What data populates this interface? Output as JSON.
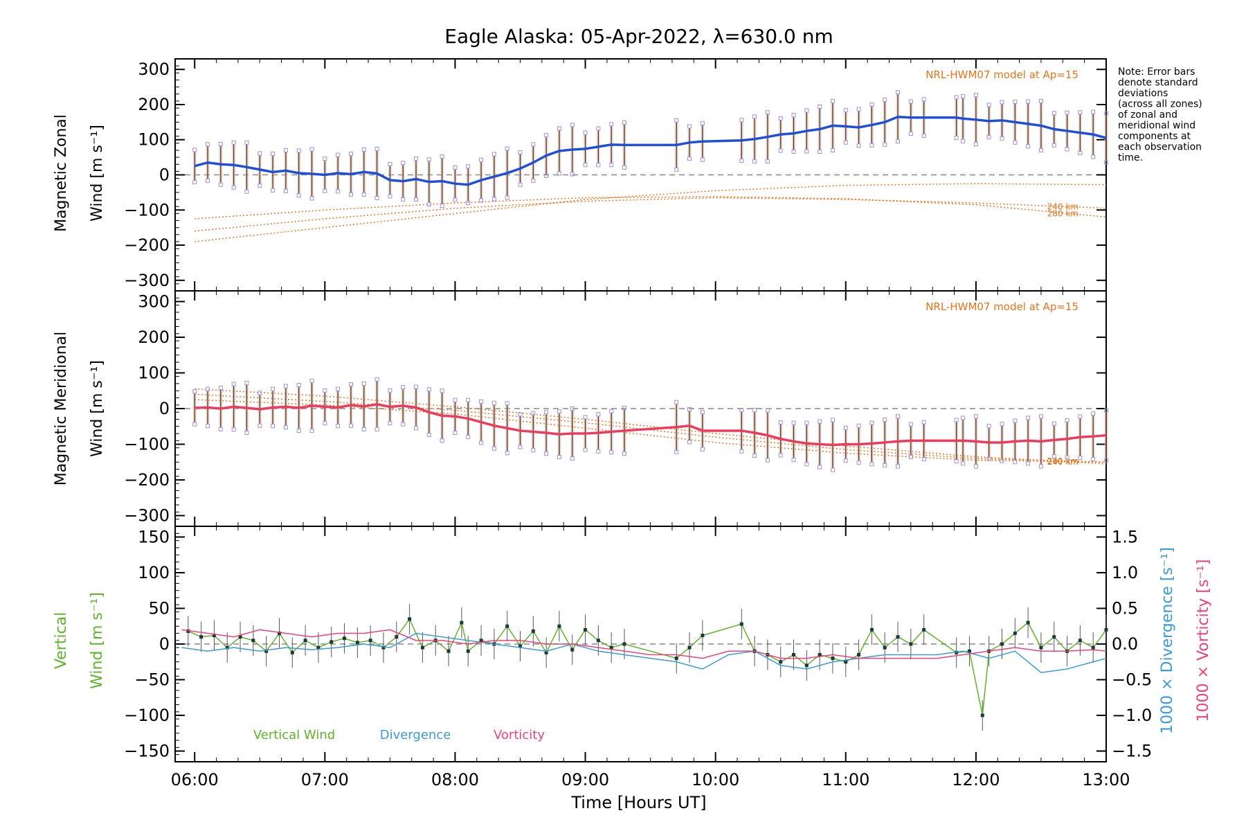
{
  "chart_data": [
    {
      "type": "line",
      "title": "Eagle Alaska: 05-Apr-2022, λ=630.0 nm",
      "ylabel_line1": "Magnetic Zonal",
      "ylabel_line2": "Wind [m s⁻¹]",
      "ylim": [
        -330,
        330
      ],
      "yticks": [
        300,
        200,
        100,
        0,
        -100,
        -200,
        -300
      ],
      "model_label": "NRL-HWM07 model at Ap=15",
      "model_height_labels": [
        "280 km",
        "240 km"
      ],
      "note": [
        "Note: Error bars",
        "denote standard",
        "deviations",
        "(across all zones)",
        "of zonal and",
        "meridional wind",
        "components at",
        "each observation",
        "time."
      ],
      "series": [
        {
          "name": "",
          "color": "#1f4fd8",
          "x": [
            6.0,
            6.1,
            6.2,
            6.3,
            6.4,
            6.5,
            6.6,
            6.7,
            6.8,
            6.9,
            7.0,
            7.1,
            7.2,
            7.3,
            7.4,
            7.5,
            7.6,
            7.7,
            7.8,
            7.9,
            8.0,
            8.1,
            8.2,
            8.3,
            8.4,
            8.5,
            8.6,
            8.7,
            8.8,
            8.9,
            9.0,
            9.1,
            9.2,
            9.3,
            9.7,
            9.8,
            9.9,
            10.2,
            10.3,
            10.4,
            10.5,
            10.6,
            10.7,
            10.8,
            10.9,
            11.0,
            11.1,
            11.2,
            11.3,
            11.4,
            11.5,
            11.6,
            11.85,
            11.9,
            12.0,
            12.1,
            12.2,
            12.3,
            12.4,
            12.5,
            12.6,
            12.7,
            12.8,
            12.9,
            13.0
          ],
          "y": [
            25,
            35,
            30,
            28,
            22,
            15,
            8,
            12,
            5,
            3,
            0,
            5,
            2,
            8,
            4,
            -15,
            -18,
            -12,
            -20,
            -18,
            -25,
            -28,
            -15,
            -5,
            5,
            18,
            35,
            55,
            68,
            72,
            74,
            80,
            86,
            85,
            85,
            92,
            95,
            98,
            102,
            108,
            115,
            118,
            125,
            130,
            140,
            138,
            135,
            142,
            150,
            165,
            163,
            163,
            163,
            160,
            157,
            153,
            155,
            150,
            145,
            140,
            130,
            125,
            120,
            115,
            105
          ]
        }
      ],
      "model_curves": [
        {
          "name": "280 km",
          "x": [
            6.0,
            7.0,
            8.0,
            9.0,
            10.0,
            11.0,
            12.0,
            13.0
          ],
          "y": [
            -125,
            -100,
            -80,
            -65,
            -62,
            -68,
            -85,
            -120
          ]
        },
        {
          "name": "240 km",
          "x": [
            6.0,
            7.0,
            8.0,
            9.0,
            10.0,
            11.0,
            12.0,
            13.0
          ],
          "y": [
            -160,
            -125,
            -95,
            -75,
            -65,
            -70,
            -80,
            -95
          ]
        },
        {
          "name": "",
          "x": [
            6.0,
            7.0,
            8.0,
            9.0,
            10.0,
            11.0,
            12.0,
            13.0
          ],
          "y": [
            -190,
            -150,
            -110,
            -70,
            -45,
            -30,
            -25,
            -28
          ]
        }
      ]
    },
    {
      "type": "line",
      "ylabel_line1": "Magnetic Meridional",
      "ylabel_line2": "Wind [m s⁻¹]",
      "ylim": [
        -330,
        330
      ],
      "yticks": [
        300,
        200,
        100,
        0,
        -100,
        -200,
        -300
      ],
      "model_label": "NRL-HWM07 model at Ap=15",
      "model_height_labels": [
        "280 km",
        "240 km"
      ],
      "series": [
        {
          "name": "",
          "color": "#ef3a5d",
          "x": [
            6.0,
            6.1,
            6.2,
            6.3,
            6.4,
            6.5,
            6.6,
            6.7,
            6.8,
            6.9,
            7.0,
            7.1,
            7.2,
            7.3,
            7.4,
            7.5,
            7.6,
            7.7,
            7.8,
            7.9,
            8.0,
            8.1,
            8.2,
            8.3,
            8.4,
            8.5,
            8.6,
            8.7,
            8.8,
            8.9,
            9.0,
            9.1,
            9.2,
            9.3,
            9.7,
            9.8,
            9.9,
            10.2,
            10.3,
            10.4,
            10.5,
            10.6,
            10.7,
            10.8,
            10.9,
            11.0,
            11.1,
            11.2,
            11.3,
            11.4,
            11.5,
            11.6,
            11.85,
            11.9,
            12.0,
            12.1,
            12.2,
            12.3,
            12.4,
            12.5,
            12.6,
            12.7,
            12.8,
            12.9,
            13.0
          ],
          "y": [
            2,
            3,
            0,
            5,
            2,
            -2,
            3,
            5,
            2,
            8,
            5,
            3,
            10,
            6,
            12,
            5,
            8,
            3,
            -10,
            -20,
            -22,
            -28,
            -38,
            -48,
            -55,
            -62,
            -65,
            -68,
            -72,
            -70,
            -70,
            -68,
            -65,
            -62,
            -52,
            -48,
            -62,
            -62,
            -68,
            -75,
            -85,
            -92,
            -98,
            -100,
            -102,
            -100,
            -100,
            -98,
            -95,
            -92,
            -90,
            -90,
            -90,
            -90,
            -92,
            -95,
            -95,
            -92,
            -90,
            -92,
            -88,
            -85,
            -80,
            -78,
            -75
          ]
        }
      ],
      "model_curves": [
        {
          "name": "280 km",
          "x": [
            6.0,
            7.0,
            8.0,
            9.0,
            10.0,
            11.0,
            12.0,
            13.0
          ],
          "y": [
            40,
            20,
            -5,
            -40,
            -80,
            -115,
            -140,
            -150
          ]
        },
        {
          "name": "240 km",
          "x": [
            6.0,
            7.0,
            8.0,
            9.0,
            10.0,
            11.0,
            12.0,
            13.0
          ],
          "y": [
            55,
            35,
            5,
            -30,
            -70,
            -105,
            -135,
            -155
          ]
        },
        {
          "name": "",
          "x": [
            6.0,
            7.0,
            8.0,
            9.0,
            10.0,
            11.0,
            12.0,
            13.0
          ],
          "y": [
            25,
            10,
            -15,
            -55,
            -95,
            -125,
            -145,
            -150
          ]
        }
      ]
    },
    {
      "type": "line",
      "ylabel_line1": "Vertical",
      "ylabel_line2": "Wind [m s⁻¹]",
      "ylim": [
        -165,
        165
      ],
      "yticks": [
        150,
        100,
        50,
        0,
        -50,
        -100,
        -150
      ],
      "y2lim": [
        -1.65,
        1.65
      ],
      "y2ticks": [
        "1.5",
        "1.0",
        "0.5",
        "0.0",
        "-0.5",
        "-1.0",
        "-1.5"
      ],
      "y2label_1": "1000 × Divergence [s⁻¹]",
      "y2label_2": "1000 × Vorticity [s⁻¹]",
      "xlabel": "Time [Hours UT]",
      "xlim": [
        5.85,
        13.0
      ],
      "xticks": [
        "06:00",
        "07:00",
        "08:00",
        "09:00",
        "10:00",
        "11:00",
        "12:00",
        "13:00"
      ],
      "legend": [
        {
          "label": "Vertical Wind",
          "color": "#5fb327"
        },
        {
          "label": "Divergence",
          "color": "#3a9bd6"
        },
        {
          "label": "Vorticity",
          "color": "#f0407a"
        }
      ],
      "series": [
        {
          "name": "Vertical Wind",
          "color": "#5fb327",
          "x": [
            5.95,
            6.05,
            6.15,
            6.25,
            6.35,
            6.45,
            6.55,
            6.65,
            6.75,
            6.85,
            6.95,
            7.05,
            7.15,
            7.25,
            7.35,
            7.45,
            7.55,
            7.65,
            7.75,
            7.85,
            7.95,
            8.05,
            8.1,
            8.2,
            8.3,
            8.4,
            8.5,
            8.6,
            8.7,
            8.8,
            8.9,
            9.0,
            9.1,
            9.2,
            9.3,
            9.7,
            9.8,
            9.9,
            10.2,
            10.3,
            10.4,
            10.5,
            10.6,
            10.7,
            10.8,
            10.9,
            11.0,
            11.1,
            11.2,
            11.3,
            11.4,
            11.5,
            11.6,
            11.85,
            11.95,
            12.05,
            12.1,
            12.2,
            12.3,
            12.4,
            12.5,
            12.6,
            12.7,
            12.8,
            12.9,
            13.0
          ],
          "y": [
            18,
            10,
            12,
            -5,
            10,
            5,
            -10,
            15,
            -12,
            5,
            -5,
            3,
            8,
            2,
            5,
            -5,
            10,
            35,
            -5,
            5,
            -10,
            30,
            -10,
            5,
            0,
            25,
            -3,
            18,
            -12,
            25,
            -8,
            20,
            5,
            -5,
            0,
            -20,
            -5,
            12,
            28,
            -10,
            -15,
            -25,
            -15,
            -30,
            -15,
            -20,
            -25,
            -15,
            20,
            -5,
            10,
            0,
            20,
            -12,
            -10,
            -100,
            -10,
            0,
            15,
            30,
            -5,
            10,
            -10,
            5,
            -5,
            20
          ]
        },
        {
          "name": "Divergence",
          "color": "#3a9bd6",
          "x": [
            5.9,
            6.1,
            6.3,
            6.5,
            6.7,
            6.9,
            7.1,
            7.3,
            7.5,
            7.7,
            7.9,
            8.1,
            8.3,
            8.5,
            8.7,
            8.9,
            9.1,
            9.3,
            9.5,
            9.7,
            9.9,
            10.1,
            10.3,
            10.5,
            10.7,
            10.9,
            11.1,
            11.3,
            11.5,
            11.7,
            11.9,
            12.1,
            12.3,
            12.5,
            12.7,
            12.9,
            13.0
          ],
          "y": [
            -0.05,
            -0.1,
            -0.05,
            -0.1,
            -0.05,
            -0.08,
            -0.05,
            0.0,
            -0.05,
            0.15,
            0.1,
            0.05,
            0.0,
            -0.05,
            -0.1,
            0.0,
            -0.1,
            -0.15,
            -0.2,
            -0.25,
            -0.35,
            -0.15,
            -0.1,
            -0.3,
            -0.35,
            -0.25,
            -0.2,
            -0.15,
            -0.15,
            -0.15,
            -0.1,
            -0.2,
            -0.1,
            -0.4,
            -0.35,
            -0.25,
            -0.2
          ]
        },
        {
          "name": "Vorticity",
          "color": "#f0407a",
          "x": [
            5.9,
            6.1,
            6.3,
            6.5,
            6.7,
            6.9,
            7.1,
            7.3,
            7.5,
            7.7,
            7.9,
            8.1,
            8.3,
            8.5,
            8.7,
            8.9,
            9.1,
            9.3,
            9.5,
            9.7,
            9.9,
            10.1,
            10.3,
            10.5,
            10.7,
            10.9,
            11.1,
            11.3,
            11.5,
            11.7,
            11.9,
            12.1,
            12.3,
            12.5,
            12.7,
            12.9,
            13.0
          ],
          "y": [
            0.2,
            0.15,
            0.1,
            0.2,
            0.15,
            0.1,
            0.15,
            0.15,
            0.2,
            0.05,
            0.05,
            0.0,
            0.05,
            0.05,
            0.0,
            0.0,
            -0.05,
            -0.1,
            -0.15,
            -0.15,
            -0.2,
            -0.1,
            -0.1,
            -0.2,
            -0.2,
            -0.15,
            -0.2,
            -0.2,
            -0.2,
            -0.2,
            -0.15,
            -0.1,
            -0.05,
            -0.1,
            -0.1,
            -0.08,
            -0.1
          ]
        }
      ]
    }
  ]
}
